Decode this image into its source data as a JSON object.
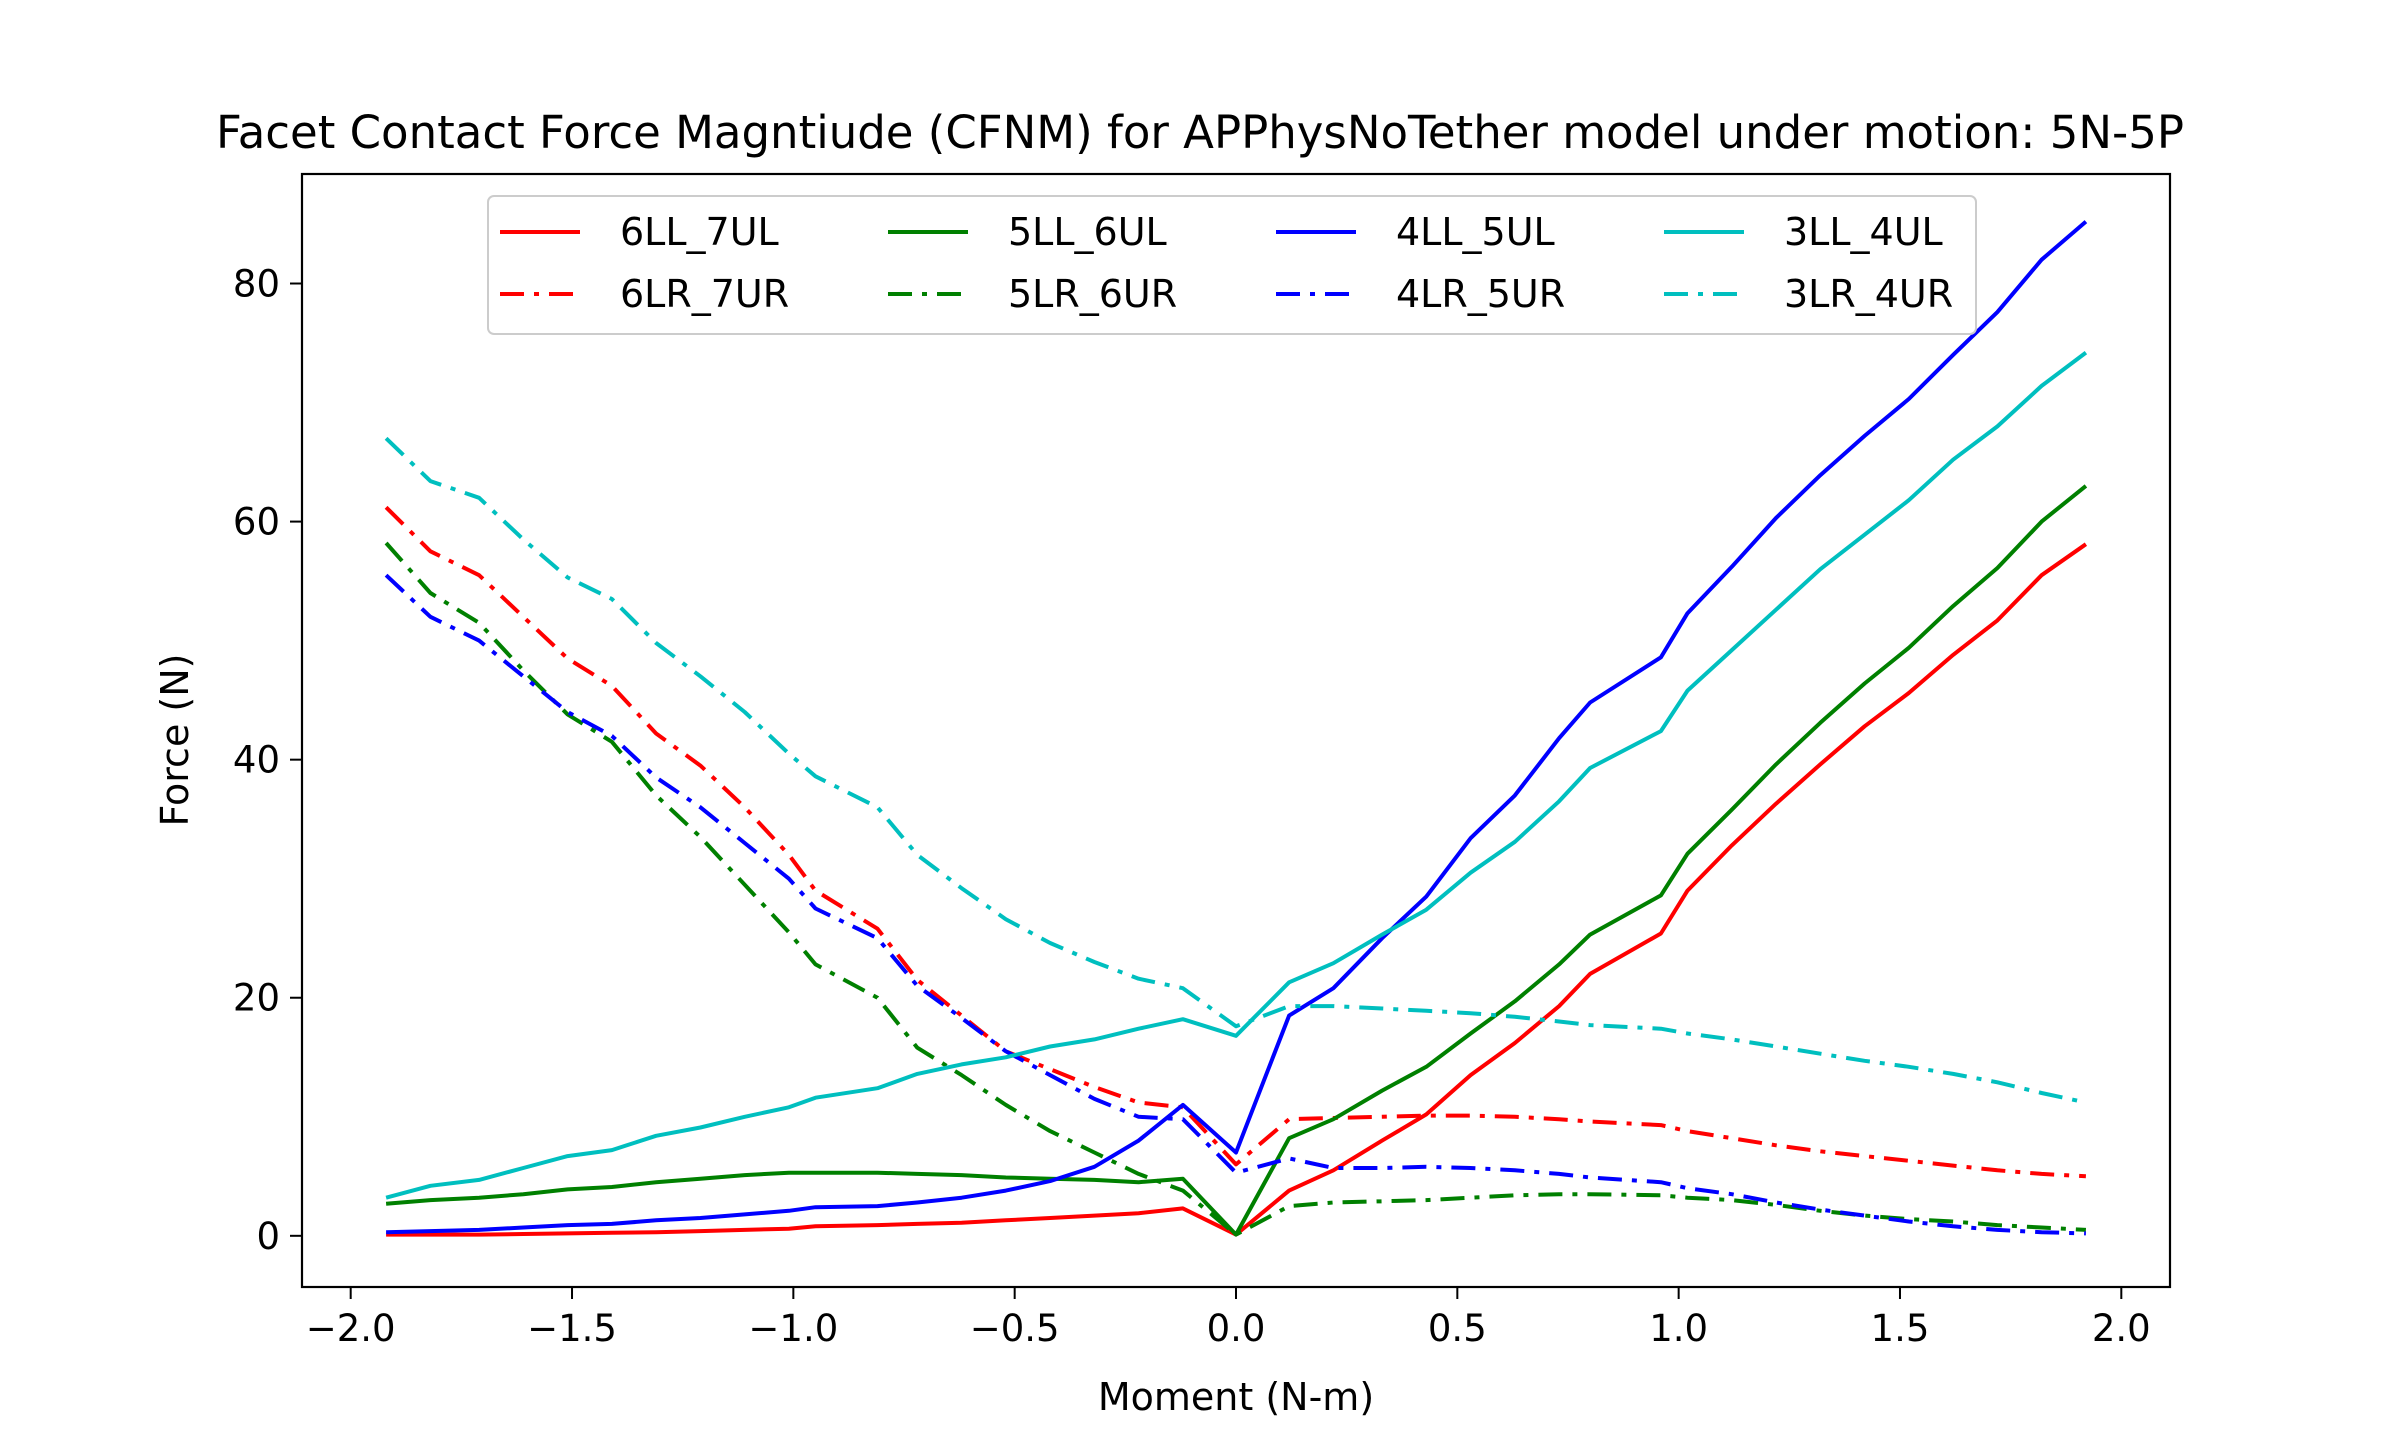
{
  "chart_data": {
    "type": "line",
    "title": "Facet Contact Force Magntiude (CFNM) for APPhysNoTether model under motion: 5N-5P",
    "xlabel": "Moment (N-m)",
    "ylabel": "Force (N)",
    "xlim": [
      -2.11,
      2.11
    ],
    "ylim": [
      -4.3,
      89.2
    ],
    "xticks": [
      -2.0,
      -1.5,
      -1.0,
      -0.5,
      0.0,
      0.5,
      1.0,
      1.5,
      2.0
    ],
    "xtick_labels": [
      "−2.0",
      "−1.5",
      "−1.0",
      "−0.5",
      "0.0",
      "0.5",
      "1.0",
      "1.5",
      "2.0"
    ],
    "yticks": [
      0,
      20,
      40,
      60,
      80
    ],
    "ytick_labels": [
      "0",
      "20",
      "40",
      "60",
      "80"
    ],
    "grid": false,
    "legend": {
      "placement": "top-center",
      "columns": 4
    },
    "x": [
      -1.92,
      -1.82,
      -1.71,
      -1.61,
      -1.51,
      -1.41,
      -1.31,
      -1.21,
      -1.11,
      -1.01,
      -0.95,
      -0.81,
      -0.72,
      -0.62,
      -0.52,
      -0.42,
      -0.32,
      -0.22,
      -0.12,
      0.0,
      0.12,
      0.22,
      0.33,
      0.43,
      0.53,
      0.63,
      0.73,
      0.8,
      0.96,
      1.02,
      1.12,
      1.22,
      1.32,
      1.42,
      1.52,
      1.62,
      1.72,
      1.82,
      1.92
    ],
    "series": [
      {
        "name": "6LL_7UL",
        "color": "#ff0000",
        "style": "solid",
        "values": [
          0.1,
          0.1,
          0.1,
          0.15,
          0.2,
          0.25,
          0.3,
          0.4,
          0.5,
          0.6,
          0.8,
          0.9,
          1.0,
          1.1,
          1.3,
          1.5,
          1.7,
          1.9,
          2.3,
          0.1,
          3.8,
          5.5,
          8.0,
          10.2,
          13.5,
          16.2,
          19.3,
          22.0,
          25.4,
          29.0,
          32.8,
          36.3,
          39.6,
          42.8,
          45.6,
          48.8,
          51.7,
          55.5,
          58.1
        ]
      },
      {
        "name": "6LR_7UR",
        "color": "#ff0000",
        "style": "dashdot",
        "values": [
          61.2,
          57.5,
          55.5,
          52.0,
          48.5,
          46.2,
          42.2,
          39.5,
          36.0,
          32.0,
          29.0,
          25.8,
          21.5,
          18.5,
          15.5,
          14.0,
          12.5,
          11.2,
          10.8,
          6.0,
          9.8,
          9.9,
          10.0,
          10.1,
          10.1,
          10.0,
          9.8,
          9.6,
          9.3,
          8.8,
          8.2,
          7.6,
          7.1,
          6.7,
          6.3,
          5.9,
          5.5,
          5.2,
          5.0
        ]
      },
      {
        "name": "5LL_6UL",
        "color": "#008000",
        "style": "solid",
        "values": [
          2.7,
          3.0,
          3.2,
          3.5,
          3.9,
          4.1,
          4.5,
          4.8,
          5.1,
          5.3,
          5.3,
          5.3,
          5.2,
          5.1,
          4.9,
          4.8,
          4.7,
          4.5,
          4.8,
          0.1,
          8.2,
          9.8,
          12.2,
          14.2,
          17.0,
          19.7,
          22.8,
          25.3,
          28.6,
          32.1,
          35.8,
          39.6,
          43.1,
          46.4,
          49.4,
          52.9,
          56.1,
          60.0,
          63.0
        ]
      },
      {
        "name": "5LR_6UR",
        "color": "#008000",
        "style": "dashdot",
        "values": [
          58.2,
          54.0,
          51.5,
          47.5,
          43.8,
          41.5,
          37.0,
          33.5,
          29.5,
          25.5,
          22.8,
          20.0,
          15.8,
          13.5,
          11.0,
          8.8,
          7.0,
          5.2,
          3.8,
          0.1,
          2.5,
          2.8,
          2.9,
          3.0,
          3.2,
          3.4,
          3.5,
          3.5,
          3.4,
          3.2,
          3.0,
          2.6,
          2.1,
          1.7,
          1.4,
          1.2,
          0.9,
          0.7,
          0.5
        ]
      },
      {
        "name": "4LL_5UL",
        "color": "#0000ff",
        "style": "solid",
        "values": [
          0.3,
          0.4,
          0.5,
          0.7,
          0.9,
          1.0,
          1.3,
          1.5,
          1.8,
          2.1,
          2.4,
          2.5,
          2.8,
          3.2,
          3.8,
          4.6,
          5.8,
          8.0,
          11.0,
          7.0,
          18.5,
          20.8,
          25.0,
          28.5,
          33.4,
          37.0,
          41.8,
          44.8,
          48.6,
          52.3,
          56.2,
          60.3,
          63.9,
          67.2,
          70.3,
          74.0,
          77.6,
          82.0,
          85.2
        ]
      },
      {
        "name": "4LR_5UR",
        "color": "#0000ff",
        "style": "dashdot",
        "values": [
          55.5,
          52.0,
          50.0,
          47.0,
          44.0,
          42.0,
          38.5,
          36.0,
          33.0,
          30.0,
          27.5,
          25.0,
          21.0,
          18.3,
          15.5,
          13.5,
          11.5,
          10.0,
          9.8,
          5.3,
          6.5,
          5.7,
          5.7,
          5.8,
          5.7,
          5.5,
          5.2,
          4.9,
          4.5,
          4.0,
          3.5,
          2.8,
          2.2,
          1.7,
          1.2,
          0.8,
          0.5,
          0.3,
          0.2
        ]
      },
      {
        "name": "3LL_4UL",
        "color": "#00bfbf",
        "style": "solid",
        "values": [
          3.2,
          4.2,
          4.7,
          5.7,
          6.7,
          7.2,
          8.4,
          9.1,
          10.0,
          10.8,
          11.6,
          12.4,
          13.6,
          14.4,
          15.0,
          15.9,
          16.5,
          17.4,
          18.2,
          16.8,
          21.3,
          22.9,
          25.3,
          27.4,
          30.5,
          33.1,
          36.5,
          39.3,
          42.4,
          45.8,
          49.2,
          52.6,
          56.0,
          58.9,
          61.8,
          65.2,
          68.0,
          71.4,
          74.2
        ]
      },
      {
        "name": "3LR_4UR",
        "color": "#00bfbf",
        "style": "dashdot",
        "values": [
          67.0,
          63.4,
          62.0,
          58.5,
          55.3,
          53.5,
          49.8,
          47.0,
          44.0,
          40.5,
          38.6,
          36.0,
          32.0,
          29.2,
          26.6,
          24.6,
          23.0,
          21.6,
          20.8,
          17.6,
          19.3,
          19.3,
          19.1,
          18.9,
          18.7,
          18.4,
          18.0,
          17.7,
          17.4,
          17.0,
          16.5,
          15.9,
          15.3,
          14.7,
          14.2,
          13.6,
          12.9,
          12.0,
          11.2
        ]
      }
    ]
  }
}
